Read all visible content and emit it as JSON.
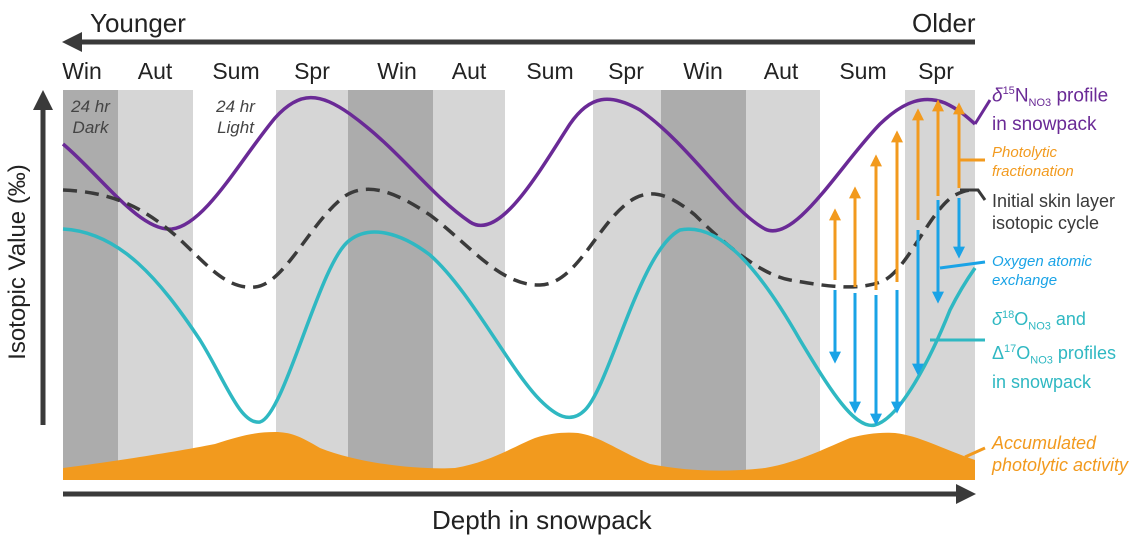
{
  "direction": {
    "left_label": "Younger",
    "right_label": "Older"
  },
  "seasons": [
    "Win",
    "Aut",
    "Sum",
    "Spr",
    "Win",
    "Aut",
    "Sum",
    "Spr",
    "Win",
    "Aut",
    "Sum",
    "Spr"
  ],
  "notes": {
    "dark_line1": "24 hr",
    "dark_line2": "Dark",
    "light_line1": "24 hr",
    "light_line2": "Light"
  },
  "axes": {
    "y_label": "Isotopic Value (‰)",
    "x_label": "Depth in snowpack"
  },
  "legend": {
    "n15": {
      "delta": "δ",
      "sup": "15",
      "base": "N",
      "sub": "NO3",
      "rest": " profile",
      "line2": "in snowpack",
      "color": "#6a2a96"
    },
    "photolytic": {
      "line1": "Photolytic",
      "line2": "fractionation",
      "color": "#f29a1e"
    },
    "skin": {
      "line1": "Initial skin layer",
      "line2": "isotopic cycle",
      "color": "#3a3a3a"
    },
    "oxygen": {
      "line1": "Oxygen atomic",
      "line2": "exchange",
      "color": "#1aa3e6"
    },
    "o18": {
      "delta": "δ",
      "sup1": "18",
      "base1": "O",
      "sub1": "NO3",
      "and": " and",
      "Delta": "Δ",
      "sup2": "17",
      "base2": "O",
      "sub2": "NO3",
      "rest2": " profiles",
      "line3": "in snowpack",
      "color": "#2fb8c2"
    },
    "activity": {
      "line1": "Accumulated",
      "line2": "photolytic activity",
      "color": "#f29a1e"
    }
  },
  "colors": {
    "dark_band": "#acacac",
    "light_band": "#d6d6d6",
    "arrow": "#3a3a3a"
  }
}
